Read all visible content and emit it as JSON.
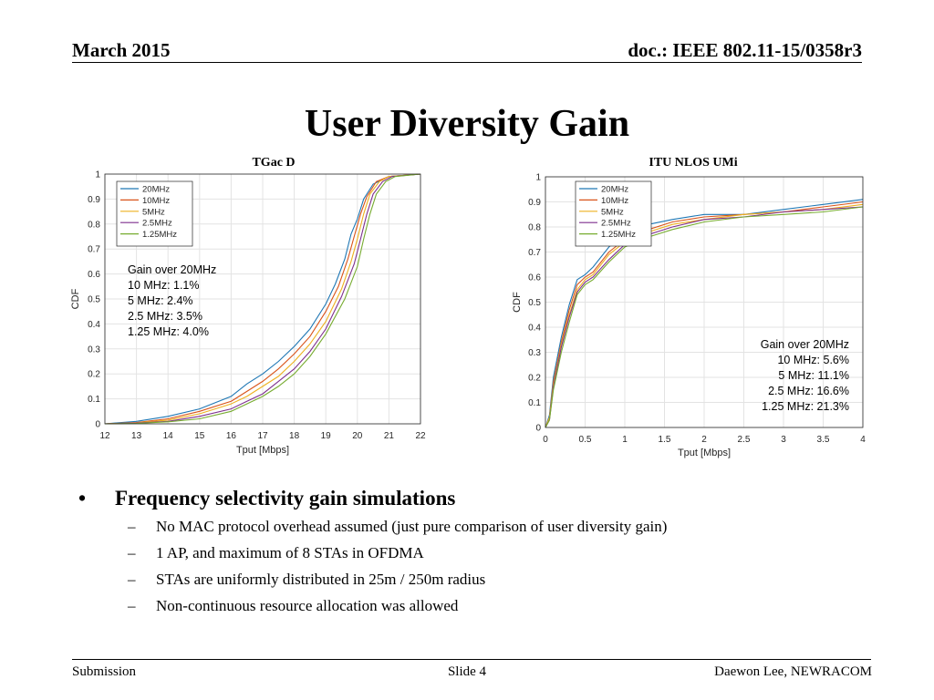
{
  "header": {
    "date": "March 2015",
    "doc": "doc.: IEEE 802.11-15/0358r3"
  },
  "slide_title": "User Diversity Gain",
  "chart_data": [
    {
      "type": "line",
      "title": "TGac D",
      "xlabel": "Tput [Mbps]",
      "ylabel": "CDF",
      "xlim": [
        12,
        22
      ],
      "ylim": [
        0,
        1
      ],
      "xticks": [
        "12",
        "13",
        "14",
        "15",
        "16",
        "17",
        "18",
        "19",
        "20",
        "21",
        "22"
      ],
      "yticks": [
        "0",
        "0.1",
        "0.2",
        "0.3",
        "0.4",
        "0.5",
        "0.6",
        "0.7",
        "0.8",
        "0.9",
        "1"
      ],
      "grid": true,
      "legend_position": "top-left",
      "annotation": [
        "Gain over 20MHz",
        "10 MHz:  1.1%",
        "5 MHz: 2.4%",
        "2.5 MHz: 3.5%",
        "1.25 MHz: 4.0%"
      ],
      "series": [
        {
          "name": "20MHz",
          "color": "#1f77b4",
          "x": [
            12,
            13,
            14,
            15,
            16,
            16.5,
            17,
            17.5,
            18,
            18.5,
            19,
            19.3,
            19.6,
            19.8,
            20,
            20.2,
            20.5,
            21,
            22
          ],
          "y": [
            0,
            0.01,
            0.03,
            0.06,
            0.11,
            0.16,
            0.2,
            0.25,
            0.31,
            0.38,
            0.48,
            0.56,
            0.66,
            0.76,
            0.82,
            0.9,
            0.96,
            0.99,
            1
          ]
        },
        {
          "name": "10MHz",
          "color": "#d95319",
          "x": [
            12,
            13,
            14,
            15,
            16,
            16.5,
            17,
            17.5,
            18,
            18.5,
            19,
            19.4,
            19.7,
            19.9,
            20.1,
            20.3,
            20.6,
            21,
            22
          ],
          "y": [
            0,
            0.005,
            0.02,
            0.05,
            0.09,
            0.13,
            0.17,
            0.22,
            0.28,
            0.35,
            0.45,
            0.55,
            0.66,
            0.75,
            0.84,
            0.91,
            0.97,
            0.99,
            1
          ]
        },
        {
          "name": "5MHz",
          "color": "#edb120",
          "x": [
            12,
            13,
            14,
            15,
            16,
            16.5,
            17,
            17.5,
            18,
            18.5,
            19,
            19.5,
            19.8,
            20,
            20.2,
            20.4,
            20.7,
            21,
            22
          ],
          "y": [
            0,
            0.004,
            0.015,
            0.04,
            0.08,
            0.11,
            0.15,
            0.19,
            0.25,
            0.32,
            0.41,
            0.54,
            0.65,
            0.74,
            0.84,
            0.92,
            0.97,
            0.99,
            1
          ]
        },
        {
          "name": "2.5MHz",
          "color": "#7e2f8e",
          "x": [
            12,
            13,
            14,
            15,
            16,
            16.5,
            17,
            17.5,
            18,
            18.5,
            19,
            19.5,
            19.9,
            20.1,
            20.3,
            20.5,
            20.8,
            21.1,
            22
          ],
          "y": [
            0,
            0.003,
            0.01,
            0.03,
            0.06,
            0.09,
            0.12,
            0.17,
            0.22,
            0.29,
            0.38,
            0.51,
            0.64,
            0.74,
            0.84,
            0.92,
            0.97,
            0.99,
            1
          ]
        },
        {
          "name": "1.25MHz",
          "color": "#77ac30",
          "x": [
            12,
            13,
            14,
            15,
            16,
            16.5,
            17,
            17.5,
            18,
            18.5,
            19,
            19.6,
            20,
            20.2,
            20.4,
            20.6,
            20.9,
            21.2,
            22
          ],
          "y": [
            0,
            0.002,
            0.008,
            0.02,
            0.05,
            0.08,
            0.11,
            0.15,
            0.2,
            0.27,
            0.36,
            0.5,
            0.63,
            0.74,
            0.84,
            0.92,
            0.97,
            0.99,
            1
          ]
        }
      ]
    },
    {
      "type": "line",
      "title": "ITU NLOS UMi",
      "xlabel": "Tput [Mbps]",
      "ylabel": "CDF",
      "xlim": [
        0,
        4
      ],
      "ylim": [
        0,
        1
      ],
      "xticks": [
        "0",
        "0.5",
        "1",
        "1.5",
        "2",
        "2.5",
        "3",
        "3.5",
        "4"
      ],
      "yticks": [
        "0",
        "0.1",
        "0.2",
        "0.3",
        "0.4",
        "0.5",
        "0.6",
        "0.7",
        "0.8",
        "0.9",
        "1"
      ],
      "grid": true,
      "legend_position": "top-left",
      "annotation": [
        "Gain over 20MHz",
        "10 MHz:   5.6%",
        "5 MHz: 11.1%",
        "2.5 MHz: 16.6%",
        "1.25 MHz: 21.3%"
      ],
      "series": [
        {
          "name": "20MHz",
          "color": "#1f77b4",
          "x": [
            0,
            0.05,
            0.1,
            0.2,
            0.3,
            0.4,
            0.5,
            0.6,
            0.8,
            1,
            1.3,
            1.6,
            2,
            2.5,
            3,
            3.5,
            4
          ],
          "y": [
            0,
            0.05,
            0.2,
            0.36,
            0.49,
            0.59,
            0.61,
            0.64,
            0.72,
            0.77,
            0.81,
            0.83,
            0.85,
            0.85,
            0.87,
            0.89,
            0.91
          ]
        },
        {
          "name": "10MHz",
          "color": "#d95319",
          "x": [
            0,
            0.05,
            0.1,
            0.2,
            0.3,
            0.4,
            0.5,
            0.6,
            0.8,
            1,
            1.3,
            1.6,
            2,
            2.5,
            3,
            3.5,
            4
          ],
          "y": [
            0,
            0.04,
            0.18,
            0.34,
            0.47,
            0.57,
            0.6,
            0.62,
            0.7,
            0.75,
            0.79,
            0.82,
            0.84,
            0.85,
            0.86,
            0.88,
            0.9
          ]
        },
        {
          "name": "5MHz",
          "color": "#edb120",
          "x": [
            0,
            0.05,
            0.1,
            0.2,
            0.3,
            0.4,
            0.5,
            0.6,
            0.8,
            1,
            1.3,
            1.6,
            2,
            2.5,
            3,
            3.5,
            4
          ],
          "y": [
            0,
            0.04,
            0.17,
            0.33,
            0.45,
            0.55,
            0.59,
            0.61,
            0.69,
            0.74,
            0.78,
            0.81,
            0.83,
            0.85,
            0.86,
            0.87,
            0.89
          ]
        },
        {
          "name": "2.5MHz",
          "color": "#7e2f8e",
          "x": [
            0,
            0.05,
            0.1,
            0.2,
            0.3,
            0.4,
            0.5,
            0.6,
            0.8,
            1,
            1.3,
            1.6,
            2,
            2.5,
            3,
            3.5,
            4
          ],
          "y": [
            0,
            0.03,
            0.16,
            0.32,
            0.44,
            0.54,
            0.58,
            0.6,
            0.67,
            0.73,
            0.77,
            0.8,
            0.83,
            0.84,
            0.86,
            0.87,
            0.88
          ]
        },
        {
          "name": "1.25MHz",
          "color": "#77ac30",
          "x": [
            0,
            0.05,
            0.1,
            0.2,
            0.3,
            0.4,
            0.5,
            0.6,
            0.8,
            1,
            1.3,
            1.6,
            2,
            2.5,
            3,
            3.5,
            4
          ],
          "y": [
            0,
            0.03,
            0.15,
            0.3,
            0.42,
            0.53,
            0.57,
            0.59,
            0.66,
            0.72,
            0.76,
            0.79,
            0.82,
            0.84,
            0.85,
            0.86,
            0.88
          ]
        }
      ]
    }
  ],
  "bullets": {
    "main": "Frequency selectivity gain simulations",
    "main_marker": "•",
    "sub_marker": "–",
    "sub": [
      "No MAC protocol overhead assumed (just pure comparison of user diversity gain)",
      "1 AP, and maximum of 8 STAs in OFDMA",
      "STAs are uniformly distributed in 25m / 250m radius",
      "Non-continuous resource allocation was allowed"
    ]
  },
  "footer": {
    "left": "Submission",
    "center": "Slide 4",
    "right": "Daewon Lee, NEWRACOM"
  }
}
